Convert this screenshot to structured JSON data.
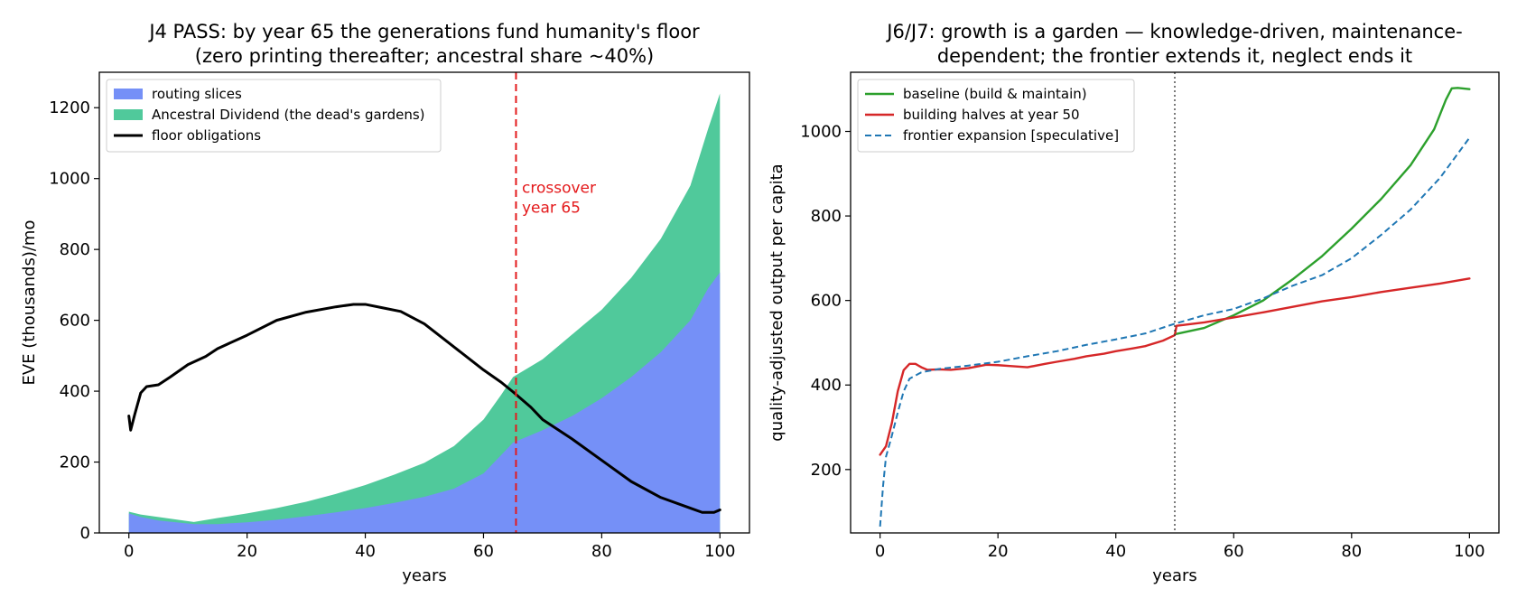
{
  "chart_data": [
    {
      "type": "area",
      "title_lines": [
        "J4 PASS: by year 65 the generations fund humanity's floor",
        "(zero printing thereafter; ancestral share ~40%)"
      ],
      "xlabel": "years",
      "ylabel": "EVE (thousands)/mo",
      "xlim": [
        -5,
        105
      ],
      "ylim": [
        0,
        1300
      ],
      "xticks": [
        0,
        20,
        40,
        60,
        80,
        100
      ],
      "yticks": [
        0,
        200,
        400,
        600,
        800,
        1000,
        1200
      ],
      "legend_position": "upper-left",
      "series": [
        {
          "name": "routing slices",
          "kind": "stacked-area",
          "color": "#7590f7",
          "points": [
            [
              0,
              55
            ],
            [
              2,
              45
            ],
            [
              5,
              35
            ],
            [
              8,
              30
            ],
            [
              11,
              25
            ],
            [
              15,
              25
            ],
            [
              20,
              30
            ],
            [
              25,
              37
            ],
            [
              30,
              47
            ],
            [
              35,
              58
            ],
            [
              40,
              70
            ],
            [
              45,
              85
            ],
            [
              50,
              102
            ],
            [
              55,
              125
            ],
            [
              60,
              168
            ],
            [
              63,
              220
            ],
            [
              65,
              255
            ],
            [
              70,
              290
            ],
            [
              75,
              330
            ],
            [
              80,
              380
            ],
            [
              85,
              440
            ],
            [
              90,
              510
            ],
            [
              95,
              600
            ],
            [
              98,
              690
            ],
            [
              100,
              735
            ]
          ]
        },
        {
          "name": "Ancestral Dividend (the dead's gardens)",
          "kind": "stacked-area",
          "color": "#50c99b",
          "points": [
            [
              0,
              60
            ],
            [
              2,
              52
            ],
            [
              5,
              45
            ],
            [
              8,
              38
            ],
            [
              11,
              31
            ],
            [
              15,
              42
            ],
            [
              20,
              55
            ],
            [
              25,
              70
            ],
            [
              30,
              88
            ],
            [
              35,
              110
            ],
            [
              40,
              135
            ],
            [
              45,
              165
            ],
            [
              50,
              198
            ],
            [
              55,
              245
            ],
            [
              60,
              320
            ],
            [
              63,
              390
            ],
            [
              65,
              440
            ],
            [
              70,
              490
            ],
            [
              75,
              560
            ],
            [
              80,
              630
            ],
            [
              85,
              720
            ],
            [
              90,
              830
            ],
            [
              95,
              980
            ],
            [
              98,
              1140
            ],
            [
              100,
              1240
            ]
          ]
        },
        {
          "name": "floor obligations",
          "kind": "line",
          "color": "#000000",
          "points": [
            [
              0,
              330
            ],
            [
              0.3,
              290
            ],
            [
              1,
              335
            ],
            [
              2,
              395
            ],
            [
              3,
              413
            ],
            [
              5,
              418
            ],
            [
              7,
              440
            ],
            [
              10,
              475
            ],
            [
              13,
              498
            ],
            [
              15,
              520
            ],
            [
              20,
              558
            ],
            [
              25,
              600
            ],
            [
              30,
              623
            ],
            [
              35,
              638
            ],
            [
              38,
              645
            ],
            [
              40,
              645
            ],
            [
              43,
              635
            ],
            [
              46,
              625
            ],
            [
              50,
              590
            ],
            [
              55,
              525
            ],
            [
              60,
              460
            ],
            [
              63,
              425
            ],
            [
              65,
              398
            ],
            [
              68,
              355
            ],
            [
              70,
              320
            ],
            [
              75,
              265
            ],
            [
              80,
              205
            ],
            [
              85,
              145
            ],
            [
              90,
              100
            ],
            [
              95,
              70
            ],
            [
              97,
              58
            ],
            [
              99,
              58
            ],
            [
              100,
              65
            ]
          ]
        }
      ],
      "annotations": [
        {
          "kind": "vline",
          "x": 65.5,
          "color": "#e41a1c",
          "style": "dashed"
        },
        {
          "kind": "text",
          "lines": [
            "crossover",
            "year 65"
          ],
          "x": 66.5,
          "y": 960,
          "color": "#e41a1c"
        }
      ]
    },
    {
      "type": "line",
      "title_lines": [
        "J6/J7: growth is a garden — knowledge-driven, maintenance-",
        "dependent; the frontier extends it, neglect ends it"
      ],
      "xlabel": "years",
      "ylabel": "quality-adjusted output per capita",
      "xlim": [
        -5,
        105
      ],
      "ylim": [
        50,
        1140
      ],
      "xticks": [
        0,
        20,
        40,
        60,
        80,
        100
      ],
      "yticks": [
        200,
        400,
        600,
        800,
        1000
      ],
      "legend_position": "upper-left",
      "series": [
        {
          "name": "baseline (build & maintain)",
          "color": "#2ca02c",
          "style": "solid",
          "points": [
            [
              50,
              520
            ],
            [
              55,
              535
            ],
            [
              60,
              565
            ],
            [
              65,
              600
            ],
            [
              70,
              650
            ],
            [
              75,
              705
            ],
            [
              80,
              770
            ],
            [
              85,
              840
            ],
            [
              90,
              920
            ],
            [
              94,
              1005
            ],
            [
              96,
              1075
            ],
            [
              97,
              1102
            ],
            [
              98,
              1103
            ],
            [
              100,
              1100
            ]
          ]
        },
        {
          "name": "building halves at year 50",
          "color": "#d62728",
          "style": "solid",
          "points": [
            [
              0,
              235
            ],
            [
              1,
              255
            ],
            [
              2,
              310
            ],
            [
              3,
              385
            ],
            [
              4,
              435
            ],
            [
              5,
              450
            ],
            [
              6,
              450
            ],
            [
              7,
              442
            ],
            [
              8,
              436
            ],
            [
              10,
              437
            ],
            [
              12,
              436
            ],
            [
              15,
              440
            ],
            [
              18,
              448
            ],
            [
              20,
              447
            ],
            [
              22,
              445
            ],
            [
              25,
              442
            ],
            [
              28,
              450
            ],
            [
              30,
              455
            ],
            [
              33,
              462
            ],
            [
              35,
              468
            ],
            [
              38,
              474
            ],
            [
              40,
              480
            ],
            [
              43,
              487
            ],
            [
              45,
              492
            ],
            [
              48,
              505
            ],
            [
              50,
              518
            ],
            [
              50.3,
              540
            ],
            [
              55,
              548
            ],
            [
              60,
              560
            ],
            [
              65,
              572
            ],
            [
              70,
              585
            ],
            [
              75,
              598
            ],
            [
              80,
              608
            ],
            [
              85,
              620
            ],
            [
              90,
              630
            ],
            [
              95,
              640
            ],
            [
              100,
              652
            ]
          ]
        },
        {
          "name": "frontier expansion [speculative]",
          "color": "#1f77b4",
          "style": "dashed",
          "points": [
            [
              0,
              65
            ],
            [
              0.5,
              160
            ],
            [
              1,
              230
            ],
            [
              2,
              280
            ],
            [
              3,
              335
            ],
            [
              4,
              385
            ],
            [
              5,
              415
            ],
            [
              7,
              430
            ],
            [
              10,
              438
            ],
            [
              15,
              446
            ],
            [
              20,
              455
            ],
            [
              25,
              468
            ],
            [
              30,
              480
            ],
            [
              35,
              495
            ],
            [
              40,
              508
            ],
            [
              45,
              522
            ],
            [
              50,
              545
            ],
            [
              55,
              565
            ],
            [
              60,
              580
            ],
            [
              65,
              605
            ],
            [
              70,
              635
            ],
            [
              75,
              660
            ],
            [
              80,
              700
            ],
            [
              85,
              755
            ],
            [
              90,
              815
            ],
            [
              95,
              890
            ],
            [
              100,
              985
            ]
          ]
        }
      ],
      "annotations": [
        {
          "kind": "vline",
          "x": 50,
          "color": "#333333",
          "style": "dotted"
        }
      ]
    }
  ]
}
